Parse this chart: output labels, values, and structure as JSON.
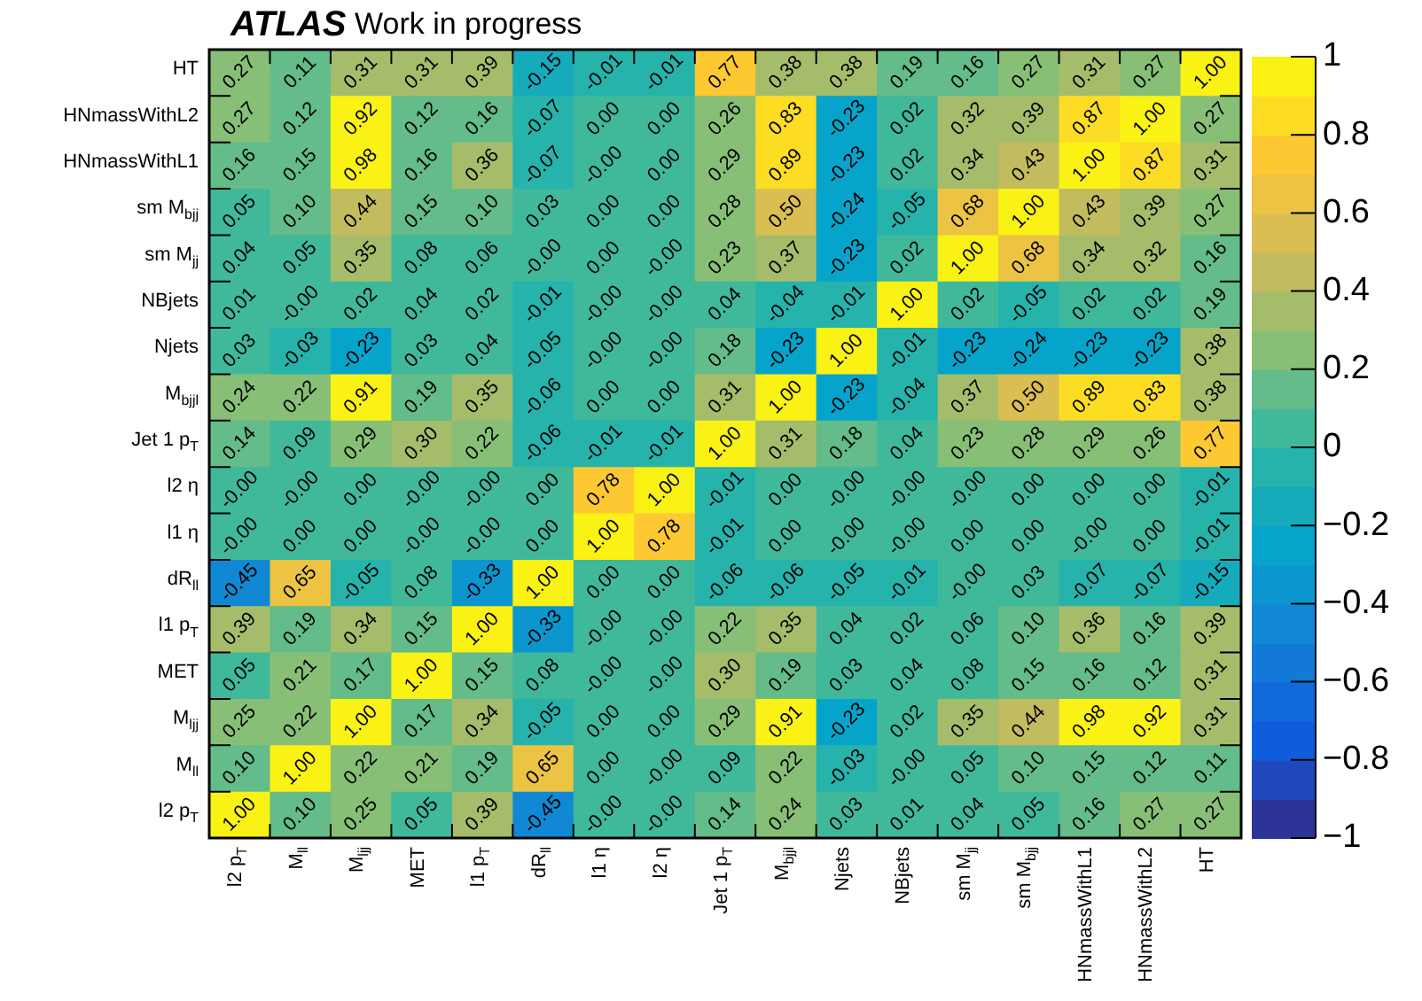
{
  "chart_data": {
    "type": "heatmap",
    "title": "ATLAS",
    "subtitle": "Work in progress",
    "categories": [
      "l2 p$_{T}$",
      "M$_{ll}$",
      "M$_{ljj}$",
      "MET",
      "l1 p$_{T}$",
      "dR$_{ll}$",
      "l1 η",
      "l2 η",
      "Jet 1 p$_{T}$",
      "M$_{bjjl}$",
      "Njets",
      "NBjets",
      "sm M$_{jj}$",
      "sm M$_{bjj}$",
      "HNmassWithL1",
      "HNmassWithL2",
      "HT"
    ],
    "y_categories": [
      "HT",
      "HNmassWithL2",
      "HNmassWithL1",
      "sm M$_{bjj}$",
      "sm M$_{jj}$",
      "NBjets",
      "Njets",
      "M$_{bjjl}$",
      "Jet 1 p$_{T}$",
      "l2 η",
      "l1 η",
      "dR$_{ll}$",
      "l1 p$_{T}$",
      "MET",
      "M$_{ljj}$",
      "M$_{ll}$",
      "l2 p$_{T}$"
    ],
    "cells": [
      [
        0.27,
        0.11,
        0.31,
        0.31,
        0.39,
        -0.15,
        -0.01,
        -0.01,
        0.77,
        0.38,
        0.38,
        0.19,
        0.16,
        0.27,
        0.31,
        0.27,
        1.0
      ],
      [
        0.27,
        0.12,
        0.92,
        0.12,
        0.16,
        -0.07,
        0.0,
        0.0,
        0.26,
        0.83,
        -0.23,
        0.02,
        0.32,
        0.39,
        0.87,
        1.0,
        0.27
      ],
      [
        0.16,
        0.15,
        0.98,
        0.16,
        0.36,
        -0.07,
        0.0,
        0.0,
        0.29,
        0.89,
        -0.23,
        0.02,
        0.34,
        0.43,
        1.0,
        0.87,
        0.31
      ],
      [
        0.05,
        0.1,
        0.44,
        0.15,
        0.1,
        0.03,
        0.0,
        0.0,
        0.28,
        0.5,
        -0.24,
        -0.05,
        0.68,
        1.0,
        0.43,
        0.39,
        0.27
      ],
      [
        0.04,
        0.05,
        0.35,
        0.08,
        0.06,
        0.0,
        0.0,
        0.0,
        0.23,
        0.37,
        -0.23,
        0.02,
        1.0,
        0.68,
        0.34,
        0.32,
        0.16
      ],
      [
        0.01,
        0.0,
        0.02,
        0.04,
        0.02,
        -0.01,
        0.0,
        0.0,
        0.04,
        -0.04,
        -0.01,
        1.0,
        0.02,
        -0.05,
        0.02,
        0.02,
        0.19
      ],
      [
        0.03,
        -0.03,
        -0.23,
        0.03,
        0.04,
        -0.05,
        0.0,
        0.0,
        0.18,
        -0.23,
        1.0,
        -0.01,
        -0.23,
        -0.24,
        -0.23,
        -0.23,
        0.38
      ],
      [
        0.24,
        0.22,
        0.91,
        0.19,
        0.35,
        -0.06,
        0.0,
        0.0,
        0.31,
        1.0,
        -0.23,
        -0.04,
        0.37,
        0.5,
        0.89,
        0.83,
        0.38
      ],
      [
        0.14,
        0.09,
        0.29,
        0.3,
        0.22,
        -0.06,
        -0.01,
        -0.01,
        1.0,
        0.31,
        0.18,
        0.04,
        0.23,
        0.28,
        0.29,
        0.26,
        0.77
      ],
      [
        0.0,
        0.0,
        0.0,
        0.0,
        0.0,
        0.0,
        0.78,
        1.0,
        -0.01,
        0.0,
        0.0,
        0.0,
        0.0,
        0.0,
        0.0,
        0.0,
        -0.01
      ],
      [
        0.0,
        0.0,
        0.0,
        0.0,
        0.0,
        0.0,
        1.0,
        0.78,
        -0.01,
        0.0,
        0.0,
        0.0,
        0.0,
        0.0,
        0.0,
        0.0,
        -0.01
      ],
      [
        -0.45,
        0.65,
        -0.05,
        0.08,
        -0.33,
        1.0,
        0.0,
        0.0,
        -0.06,
        -0.06,
        -0.05,
        -0.01,
        0.0,
        0.03,
        -0.07,
        -0.07,
        -0.15
      ],
      [
        0.39,
        0.19,
        0.34,
        0.15,
        1.0,
        -0.33,
        0.0,
        0.0,
        0.22,
        0.35,
        0.04,
        0.02,
        0.06,
        0.1,
        0.36,
        0.16,
        0.39
      ],
      [
        0.05,
        0.21,
        0.17,
        1.0,
        0.15,
        0.08,
        0.0,
        0.0,
        0.3,
        0.19,
        0.03,
        0.04,
        0.08,
        0.15,
        0.16,
        0.12,
        0.31
      ],
      [
        0.25,
        0.22,
        1.0,
        0.17,
        0.34,
        -0.05,
        0.0,
        0.0,
        0.29,
        0.91,
        -0.23,
        0.02,
        0.35,
        0.44,
        0.98,
        0.92,
        0.31
      ],
      [
        0.1,
        1.0,
        0.22,
        0.21,
        0.19,
        0.65,
        0.0,
        0.0,
        0.09,
        0.22,
        -0.03,
        0.0,
        0.05,
        0.1,
        0.15,
        0.12,
        0.11
      ],
      [
        1.0,
        0.1,
        0.25,
        0.05,
        0.39,
        -0.45,
        0.0,
        0.0,
        0.14,
        0.24,
        0.03,
        0.01,
        0.04,
        0.05,
        0.16,
        0.27,
        0.27
      ]
    ],
    "cell_labels": [
      [
        "0.27",
        "0.11",
        "0.31",
        "0.31",
        "0.39",
        "-0.15",
        "-0.01",
        "-0.01",
        "0.77",
        "0.38",
        "0.38",
        "0.19",
        "0.16",
        "0.27",
        "0.31",
        "0.27",
        "1.00"
      ],
      [
        "0.27",
        "0.12",
        "0.92",
        "0.12",
        "0.16",
        "-0.07",
        "0.00",
        "0.00",
        "0.26",
        "0.83",
        "-0.23",
        "0.02",
        "0.32",
        "0.39",
        "0.87",
        "1.00",
        "0.27"
      ],
      [
        "0.16",
        "0.15",
        "0.98",
        "0.16",
        "0.36",
        "-0.07",
        "-0.00",
        "0.00",
        "0.29",
        "0.89",
        "-0.23",
        "0.02",
        "0.34",
        "0.43",
        "1.00",
        "0.87",
        "0.31"
      ],
      [
        "0.05",
        "0.10",
        "0.44",
        "0.15",
        "0.10",
        "0.03",
        "0.00",
        "0.00",
        "0.28",
        "0.50",
        "-0.24",
        "-0.05",
        "0.68",
        "1.00",
        "0.43",
        "0.39",
        "0.27"
      ],
      [
        "0.04",
        "0.05",
        "0.35",
        "0.08",
        "0.06",
        "-0.00",
        "0.00",
        "-0.00",
        "0.23",
        "0.37",
        "-0.23",
        "0.02",
        "1.00",
        "0.68",
        "0.34",
        "0.32",
        "0.16"
      ],
      [
        "0.01",
        "-0.00",
        "0.02",
        "0.04",
        "0.02",
        "-0.01",
        "-0.00",
        "-0.00",
        "0.04",
        "-0.04",
        "-0.01",
        "1.00",
        "0.02",
        "-0.05",
        "0.02",
        "0.02",
        "0.19"
      ],
      [
        "0.03",
        "-0.03",
        "-0.23",
        "0.03",
        "0.04",
        "-0.05",
        "-0.00",
        "-0.00",
        "0.18",
        "-0.23",
        "1.00",
        "-0.01",
        "-0.23",
        "-0.24",
        "-0.23",
        "-0.23",
        "0.38"
      ],
      [
        "0.24",
        "0.22",
        "0.91",
        "0.19",
        "0.35",
        "-0.06",
        "0.00",
        "0.00",
        "0.31",
        "1.00",
        "-0.23",
        "-0.04",
        "0.37",
        "0.50",
        "0.89",
        "0.83",
        "0.38"
      ],
      [
        "0.14",
        "0.09",
        "0.29",
        "0.30",
        "0.22",
        "-0.06",
        "-0.01",
        "-0.01",
        "1.00",
        "0.31",
        "0.18",
        "0.04",
        "0.23",
        "0.28",
        "0.29",
        "0.26",
        "0.77"
      ],
      [
        "-0.00",
        "-0.00",
        "0.00",
        "-0.00",
        "-0.00",
        "0.00",
        "0.78",
        "1.00",
        "-0.01",
        "0.00",
        "-0.00",
        "-0.00",
        "-0.00",
        "0.00",
        "0.00",
        "0.00",
        "-0.01"
      ],
      [
        "-0.00",
        "0.00",
        "0.00",
        "-0.00",
        "-0.00",
        "0.00",
        "1.00",
        "0.78",
        "-0.01",
        "0.00",
        "-0.00",
        "-0.00",
        "0.00",
        "0.00",
        "-0.00",
        "0.00",
        "-0.01"
      ],
      [
        "-0.45",
        "0.65",
        "-0.05",
        "0.08",
        "-0.33",
        "1.00",
        "0.00",
        "0.00",
        "-0.06",
        "-0.06",
        "-0.05",
        "-0.01",
        "-0.00",
        "0.03",
        "-0.07",
        "-0.07",
        "-0.15"
      ],
      [
        "0.39",
        "0.19",
        "0.34",
        "0.15",
        "1.00",
        "-0.33",
        "-0.00",
        "-0.00",
        "0.22",
        "0.35",
        "0.04",
        "0.02",
        "0.06",
        "0.10",
        "0.36",
        "0.16",
        "0.39"
      ],
      [
        "0.05",
        "0.21",
        "0.17",
        "1.00",
        "0.15",
        "0.08",
        "-0.00",
        "-0.00",
        "0.30",
        "0.19",
        "0.03",
        "0.04",
        "0.08",
        "0.15",
        "0.16",
        "0.12",
        "0.31"
      ],
      [
        "0.25",
        "0.22",
        "1.00",
        "0.17",
        "0.34",
        "-0.05",
        "0.00",
        "0.00",
        "0.29",
        "0.91",
        "-0.23",
        "0.02",
        "0.35",
        "0.44",
        "0.98",
        "0.92",
        "0.31"
      ],
      [
        "0.10",
        "1.00",
        "0.22",
        "0.21",
        "0.19",
        "0.65",
        "0.00",
        "-0.00",
        "0.09",
        "0.22",
        "-0.03",
        "-0.00",
        "0.05",
        "0.10",
        "0.15",
        "0.12",
        "0.11"
      ],
      [
        "1.00",
        "0.10",
        "0.25",
        "0.05",
        "0.39",
        "-0.45",
        "-0.00",
        "-0.00",
        "0.14",
        "0.24",
        "0.03",
        "0.01",
        "0.04",
        "0.05",
        "0.16",
        "0.27",
        "0.27"
      ]
    ],
    "clim": [
      -1,
      1
    ],
    "cticks": [
      {
        "value": -1,
        "label": "−1"
      },
      {
        "value": -0.8,
        "label": "−0.8"
      },
      {
        "value": -0.6,
        "label": "−0.6"
      },
      {
        "value": -0.4,
        "label": "−0.4"
      },
      {
        "value": -0.2,
        "label": "−0.2"
      },
      0,
      0.2,
      0.4,
      0.6,
      0.8,
      1
    ]
  }
}
